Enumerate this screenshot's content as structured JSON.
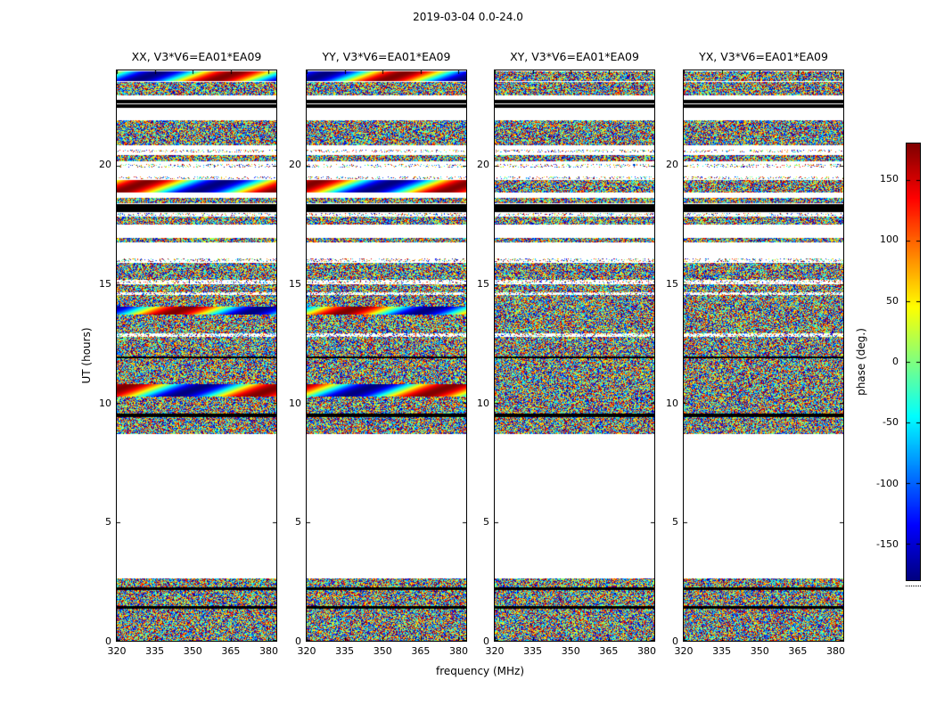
{
  "figure": {
    "title": "2019-03-04 0.0-24.0",
    "xlabel": "frequency (MHz)",
    "ylabel": "UT (hours)"
  },
  "chart_data": {
    "type": "heatmap",
    "description": "Phase waterfall plots (time vs frequency) for baseline EA01*EA09, four correlation products, jet colormap. White = no data, black = flagged rows, speckle = noisy phase, smooth = coherent phase gradient.",
    "panels": [
      {
        "title": "XX, V3*V6=EA01*EA09"
      },
      {
        "title": "YY, V3*V6=EA01*EA09"
      },
      {
        "title": "XY, V3*V6=EA01*EA09"
      },
      {
        "title": "YX, V3*V6=EA01*EA09"
      }
    ],
    "x": {
      "label": "frequency (MHz)",
      "ticks": [
        320,
        335,
        350,
        365,
        380
      ],
      "lim": [
        320,
        383
      ]
    },
    "y": {
      "label": "UT (hours)",
      "ticks": [
        0,
        5,
        10,
        15,
        20
      ],
      "lim": [
        0,
        24
      ]
    },
    "colorbar": {
      "label": "phase (deg.)",
      "ticks": [
        150,
        100,
        50,
        0,
        -50,
        -100,
        -150
      ],
      "lim": [
        -180,
        180
      ],
      "colormap": "jet"
    },
    "bands": [
      {
        "from": 0.0,
        "to": 1.35,
        "type": "noise"
      },
      {
        "from": 1.35,
        "to": 1.48,
        "type": "black"
      },
      {
        "from": 1.48,
        "to": 2.12,
        "type": "noise"
      },
      {
        "from": 2.12,
        "to": 2.24,
        "type": "black"
      },
      {
        "from": 2.24,
        "to": 2.62,
        "type": "noise"
      },
      {
        "from": 8.7,
        "to": 9.42,
        "type": "noise"
      },
      {
        "from": 9.42,
        "to": 9.55,
        "type": "black"
      },
      {
        "from": 9.55,
        "to": 10.28,
        "type": "noise"
      },
      {
        "from": 10.28,
        "to": 10.8,
        "type": "smooth"
      },
      {
        "from": 10.8,
        "to": 11.88,
        "type": "noise"
      },
      {
        "from": 11.88,
        "to": 11.98,
        "type": "black"
      },
      {
        "from": 11.98,
        "to": 12.8,
        "type": "noise"
      },
      {
        "from": 12.8,
        "to": 12.92,
        "type": "sparse"
      },
      {
        "from": 12.92,
        "to": 13.72,
        "type": "noise"
      },
      {
        "from": 13.72,
        "to": 14.08,
        "type": "smooth"
      },
      {
        "from": 14.08,
        "to": 14.55,
        "type": "noise"
      },
      {
        "from": 14.55,
        "to": 14.65,
        "type": "sparse"
      },
      {
        "from": 14.65,
        "to": 15.0,
        "type": "noise"
      },
      {
        "from": 15.05,
        "to": 15.18,
        "type": "sparse"
      },
      {
        "from": 15.18,
        "to": 15.9,
        "type": "noise"
      },
      {
        "from": 15.95,
        "to": 16.08,
        "type": "sparse"
      },
      {
        "from": 16.75,
        "to": 16.95,
        "type": "noise"
      },
      {
        "from": 17.5,
        "to": 17.85,
        "type": "noise"
      },
      {
        "from": 17.88,
        "to": 18.0,
        "type": "sparse"
      },
      {
        "from": 18.02,
        "to": 18.38,
        "type": "black"
      },
      {
        "from": 18.4,
        "to": 18.62,
        "type": "noise"
      },
      {
        "from": 18.85,
        "to": 19.38,
        "type": "smooth"
      },
      {
        "from": 19.42,
        "to": 19.52,
        "type": "sparse"
      },
      {
        "from": 19.92,
        "to": 20.05,
        "type": "sparse"
      },
      {
        "from": 20.18,
        "to": 20.42,
        "type": "noise"
      },
      {
        "from": 20.55,
        "to": 20.66,
        "type": "sparse"
      },
      {
        "from": 20.85,
        "to": 21.9,
        "type": "noise"
      },
      {
        "from": 22.42,
        "to": 22.56,
        "type": "black"
      },
      {
        "from": 22.62,
        "to": 22.76,
        "type": "black"
      },
      {
        "from": 22.95,
        "to": 23.52,
        "type": "noise"
      },
      {
        "from": 23.55,
        "to": 23.95,
        "type": "smooth"
      }
    ]
  }
}
